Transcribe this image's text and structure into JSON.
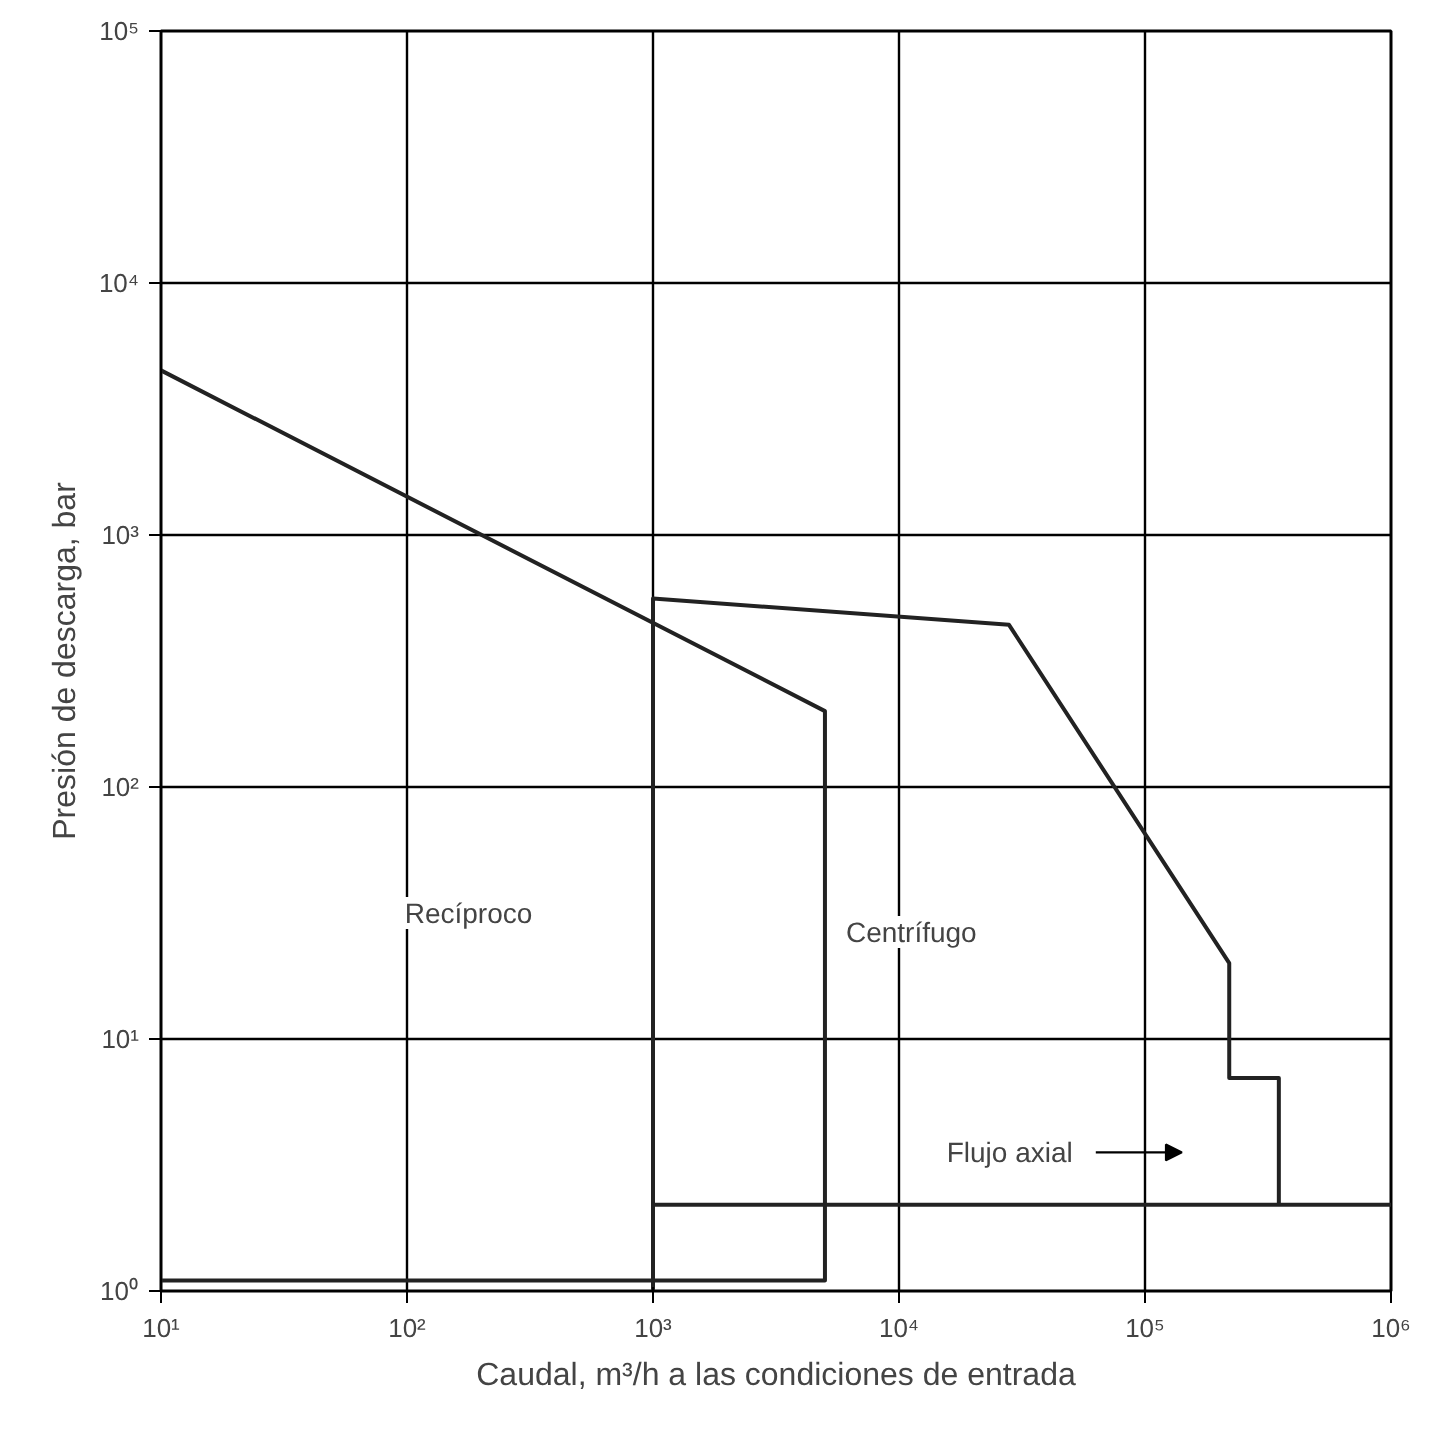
{
  "chart_data": {
    "type": "line",
    "xlabel": "Caudal, m³/h a las condiciones de entrada",
    "ylabel": "Presión de descarga, bar",
    "log": "xy",
    "grid": true,
    "marker": "none",
    "line_style": "solid",
    "xlim": [
      10,
      1000000
    ],
    "ylim": [
      1,
      100000
    ],
    "xticks": [
      {
        "value": 10,
        "label": "10¹"
      },
      {
        "value": 100,
        "label": "10²"
      },
      {
        "value": 1000,
        "label": "10³"
      },
      {
        "value": 10000,
        "label": "10⁴"
      },
      {
        "value": 100000,
        "label": "10⁵"
      },
      {
        "value": 1000000,
        "label": "10⁶"
      }
    ],
    "yticks": [
      {
        "value": 1,
        "label": "10⁰"
      },
      {
        "value": 10,
        "label": "10¹"
      },
      {
        "value": 100,
        "label": "10²"
      },
      {
        "value": 1000,
        "label": "10³"
      },
      {
        "value": 10000,
        "label": "10⁴"
      },
      {
        "value": 100000,
        "label": "10⁵"
      }
    ],
    "series": [
      {
        "color": "#222222",
        "x": [
          10,
          5000,
          5000,
          10
        ],
        "values": [
          4500,
          200,
          1.1,
          1.1
        ]
      },
      {
        "color": "#222222",
        "x": [
          1000,
          1000,
          28000,
          220000,
          220000,
          350000,
          350000
        ],
        "values": [
          1,
          560,
          440,
          20,
          7,
          7,
          2.2
        ]
      },
      {
        "color": "#222222",
        "x": [
          1000,
          1000000
        ],
        "values": [
          2.2,
          2.2
        ]
      }
    ],
    "annotations": [
      "Recíproco",
      "Centrífugo",
      "Flujo axial"
    ]
  }
}
